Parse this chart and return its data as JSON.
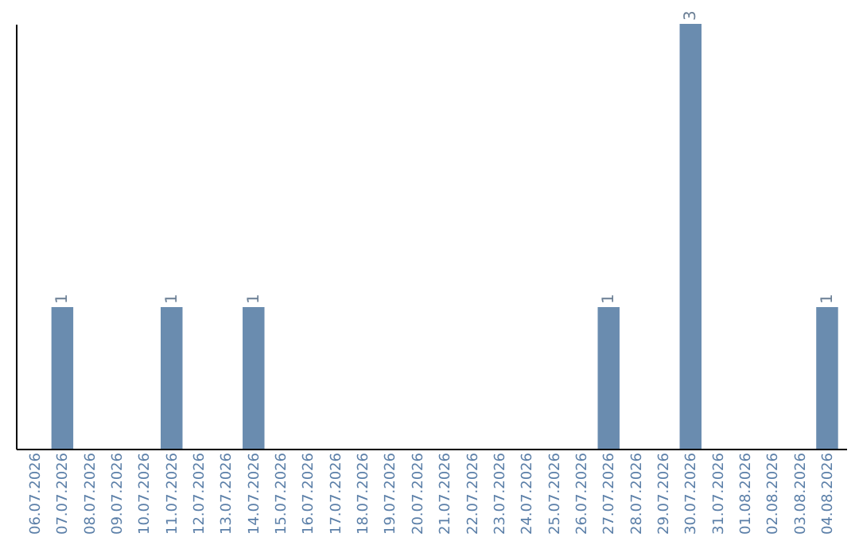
{
  "chart_data": {
    "type": "bar",
    "categories": [
      "06.07.2026",
      "07.07.2026",
      "08.07.2026",
      "09.07.2026",
      "10.07.2026",
      "11.07.2026",
      "12.07.2026",
      "13.07.2026",
      "14.07.2026",
      "15.07.2026",
      "16.07.2026",
      "17.07.2026",
      "18.07.2026",
      "19.07.2026",
      "20.07.2026",
      "21.07.2026",
      "22.07.2026",
      "23.07.2026",
      "24.07.2026",
      "25.07.2026",
      "26.07.2026",
      "27.07.2026",
      "28.07.2026",
      "29.07.2026",
      "30.07.2026",
      "31.07.2026",
      "01.08.2026",
      "02.08.2026",
      "03.08.2026",
      "04.08.2026"
    ],
    "values": [
      0,
      1,
      0,
      0,
      0,
      1,
      0,
      0,
      1,
      0,
      0,
      0,
      0,
      0,
      0,
      0,
      0,
      0,
      0,
      0,
      0,
      1,
      0,
      0,
      3,
      0,
      0,
      0,
      0,
      1
    ],
    "value_labels": [
      null,
      "1",
      null,
      null,
      null,
      "1",
      null,
      null,
      "1",
      null,
      null,
      null,
      null,
      null,
      null,
      null,
      null,
      null,
      null,
      null,
      null,
      "1",
      null,
      null,
      "3",
      null,
      null,
      null,
      null,
      "1"
    ],
    "color": "#6a8caf",
    "grid": false,
    "tick_labels": "x"
  }
}
